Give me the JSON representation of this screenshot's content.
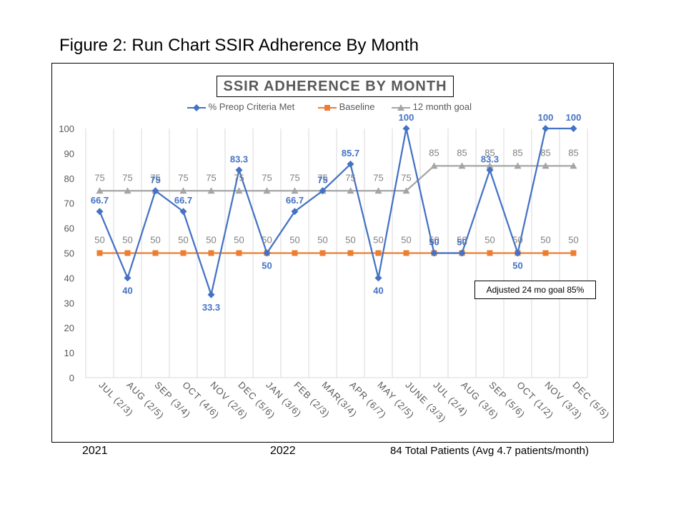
{
  "figure_caption": "Figure 2: Run Chart SSIR Adherence By Month",
  "note_box": "Adjusted 24 mo goal 85%",
  "footer": {
    "year_left": "2021",
    "year_mid": "2022",
    "total_text": "84 Total Patients (Avg 4.7 patients/month)"
  },
  "chart_data": {
    "type": "line",
    "title": "SSIR ADHERENCE BY MONTH",
    "xlabel": "",
    "ylabel": "",
    "ylim": [
      0,
      100
    ],
    "yticks": [
      0,
      10,
      20,
      30,
      40,
      50,
      60,
      70,
      80,
      90,
      100
    ],
    "grid": "vertical",
    "legend_position": "top",
    "categories": [
      "JUL (2/3)",
      "AUG (2/5)",
      "SEP (3/4)",
      "OCT (4/6)",
      "NOV (2/6)",
      "DEC (5/6)",
      "JAN (3/6)",
      "FEB (2/3)",
      "MAR(3/4)",
      "APR (6/7)",
      "MAY (2/5)",
      "JUNE (3/3)",
      "JUL (2/4)",
      "AUG (3/6)",
      "SEP (5/6)",
      "OCT (1/2)",
      "NOV (3/3)",
      "DEC (5/5)"
    ],
    "series": [
      {
        "name": "% Preop Criteria Met",
        "color": "#4472C4",
        "marker": "diamond",
        "values": [
          66.7,
          40,
          75,
          66.7,
          33.3,
          83.3,
          50,
          66.7,
          75,
          85.7,
          40,
          100,
          50,
          50,
          83.3,
          50,
          100,
          100
        ],
        "labels": [
          "66.7",
          "40",
          "75",
          "66.7",
          "33.3",
          "83.3",
          "50",
          "66.7",
          "75",
          "85.7",
          "40",
          "100",
          "50",
          "50",
          "83.3",
          "50",
          "100",
          "100"
        ]
      },
      {
        "name": "Baseline",
        "color": "#ED7D31",
        "marker": "square",
        "values": [
          50,
          50,
          50,
          50,
          50,
          50,
          50,
          50,
          50,
          50,
          50,
          50,
          50,
          50,
          50,
          50,
          50,
          50
        ],
        "labels": [
          "50",
          "50",
          "50",
          "50",
          "50",
          "50",
          "50",
          "50",
          "50",
          "50",
          "50",
          "50",
          "50",
          "50",
          "50",
          "50",
          "50",
          "50"
        ]
      },
      {
        "name": "12 month goal",
        "color": "#A5A5A5",
        "marker": "triangle",
        "values": [
          75,
          75,
          75,
          75,
          75,
          75,
          75,
          75,
          75,
          75,
          75,
          75,
          85,
          85,
          85,
          85,
          85,
          85
        ],
        "labels": [
          "75",
          "75",
          "75",
          "75",
          "75",
          "75",
          "75",
          "75",
          "75",
          "75",
          "75",
          "75",
          "85",
          "85",
          "85",
          "85",
          "85",
          "85"
        ]
      }
    ]
  }
}
